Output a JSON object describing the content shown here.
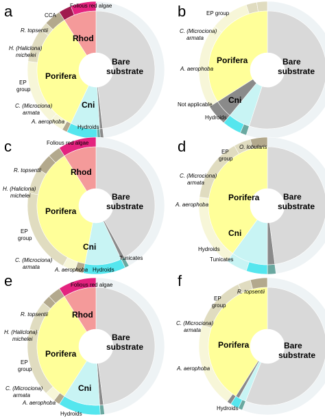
{
  "colors": {
    "bare_inner": "#d9d9d9",
    "bare_outer": "#eef3f5",
    "porifera_inner": "#ffff99",
    "porifera_outer": "#f7f6d8",
    "cni_inner": "#c8f4f4",
    "cni_outer": "#55e6ee",
    "rhod_inner": "#f49a9a",
    "rhod_outer": "#e4237f",
    "rhod_outer_dark": "#a01a4e",
    "na_inner": "#8a8a8a",
    "taxa_brown": "#b3a98d",
    "taxa_pale": "#e0dcc0",
    "teal": "#6aa8a0",
    "center": "#ffffff",
    "leader": "#444444"
  },
  "chart_data": [
    {
      "panel": "a",
      "type": "sunburst",
      "inner": [
        {
          "label": "Bare substrate",
          "value": 48.2,
          "color": "bare_inner"
        },
        {
          "label": "",
          "value": 0.8,
          "color": "na_inner"
        },
        {
          "label": "Cni",
          "value": 8.0,
          "color": "cni_inner"
        },
        {
          "label": "Porifera",
          "value": 34.0,
          "color": "porifera_inner"
        },
        {
          "label": "Rhod",
          "value": 9.0,
          "color": "rhod_inner"
        }
      ],
      "outer": [
        {
          "value": 48.2,
          "color": "bare_outer",
          "label": ""
        },
        {
          "value": 0.8,
          "color": "na_inner",
          "label": ""
        },
        {
          "value": 0.7,
          "color": "teal",
          "label": ""
        },
        {
          "value": 7.3,
          "color": "cni_outer",
          "label": "Hydroids"
        },
        {
          "value": 1.2,
          "color": "taxa_brown",
          "label": "A. aerophoba"
        },
        {
          "value": 3.5,
          "color": "porifera_outer",
          "label": "C. (Microciona) armata"
        },
        {
          "value": 15.3,
          "color": "porifera_outer",
          "label": "EP group"
        },
        {
          "value": 8.0,
          "color": "taxa_pale",
          "label": "H. (Haliclona) michelei"
        },
        {
          "value": 2.0,
          "color": "taxa_pale",
          "label": "R. topsentii"
        },
        {
          "value": 4.0,
          "color": "taxa_brown",
          "label": ""
        },
        {
          "value": 3.0,
          "color": "rhod_outer_dark",
          "label": "CCA"
        },
        {
          "value": 6.0,
          "color": "rhod_outer",
          "label": "Folious red algae"
        }
      ]
    },
    {
      "panel": "b",
      "type": "sunburst",
      "inner": [
        {
          "label": "Bare substrate",
          "value": 55.0,
          "color": "bare_inner"
        },
        {
          "label": "",
          "value": 6.0,
          "color": "cni_inner"
        },
        {
          "label": "",
          "value": 5.0,
          "color": "na_inner"
        },
        {
          "label": "Porifera",
          "value": 34.0,
          "color": "porifera_inner"
        }
      ],
      "outer": [
        {
          "value": 55.0,
          "color": "bare_outer",
          "label": ""
        },
        {
          "value": 1.5,
          "color": "teal",
          "label": "Hydroids"
        },
        {
          "value": 4.5,
          "color": "cni_outer",
          "label": ""
        },
        {
          "value": 5.0,
          "color": "na_inner",
          "label": "Not applicable"
        },
        {
          "value": 20.0,
          "color": "porifera_outer",
          "label": "A. aerophoba"
        },
        {
          "value": 9.0,
          "color": "porifera_outer",
          "label": "C. (Microciona) armata"
        },
        {
          "value": 2.5,
          "color": "taxa_pale",
          "label": "EP group"
        },
        {
          "value": 2.5,
          "color": "taxa_pale",
          "label": ""
        }
      ]
    },
    {
      "panel": "c",
      "type": "sunburst",
      "inner": [
        {
          "label": "Bare substrate",
          "value": 42.0,
          "color": "bare_inner"
        },
        {
          "label": "",
          "value": 1.0,
          "color": "na_inner"
        },
        {
          "label": "Cni",
          "value": 10.0,
          "color": "cni_inner"
        },
        {
          "label": "Porifera",
          "value": 38.0,
          "color": "porifera_inner"
        },
        {
          "label": "Rhod",
          "value": 9.0,
          "color": "rhod_inner"
        }
      ],
      "outer": [
        {
          "value": 42.0,
          "color": "bare_outer",
          "label": ""
        },
        {
          "value": 1.0,
          "color": "teal",
          "label": "Tunicates"
        },
        {
          "value": 10.0,
          "color": "cni_outer",
          "label": "Hydroids"
        },
        {
          "value": 2.0,
          "color": "taxa_brown",
          "label": "A. aerophoba"
        },
        {
          "value": 3.0,
          "color": "porifera_outer",
          "label": "C. (Microciona) armata"
        },
        {
          "value": 20.0,
          "color": "taxa_pale",
          "label": "EP group"
        },
        {
          "value": 6.0,
          "color": "taxa_pale",
          "label": "H. (Haliclona) michelei"
        },
        {
          "value": 4.0,
          "color": "taxa_brown",
          "label": "R. topsentii"
        },
        {
          "value": 3.0,
          "color": "taxa_brown",
          "label": ""
        },
        {
          "value": 9.0,
          "color": "rhod_outer",
          "label": "Folious red algae"
        }
      ]
    },
    {
      "panel": "d",
      "type": "sunburst",
      "inner": [
        {
          "label": "Bare substrate",
          "value": 48.0,
          "color": "bare_inner"
        },
        {
          "label": "",
          "value": 2.0,
          "color": "na_inner"
        },
        {
          "label": "Cni",
          "value": 10.0,
          "color": "cni_inner"
        },
        {
          "label": "Porifera",
          "value": 40.0,
          "color": "porifera_inner"
        }
      ],
      "outer": [
        {
          "value": 48.0,
          "color": "bare_outer",
          "label": ""
        },
        {
          "value": 2.0,
          "color": "teal",
          "label": "Tunicates"
        },
        {
          "value": 5.0,
          "color": "cni_outer",
          "label": "Hydroids"
        },
        {
          "value": 5.0,
          "color": "cni_inner",
          "label": ""
        },
        {
          "value": 17.0,
          "color": "porifera_outer",
          "label": "A. aerophoba"
        },
        {
          "value": 15.0,
          "color": "taxa_pale",
          "label": "C. (Microciona) armata"
        },
        {
          "value": 4.0,
          "color": "taxa_pale",
          "label": "EP group"
        },
        {
          "value": 4.0,
          "color": "taxa_brown",
          "label": "O. lobularis"
        }
      ]
    },
    {
      "panel": "e",
      "type": "sunburst",
      "inner": [
        {
          "label": "Bare substrate",
          "value": 48.0,
          "color": "bare_inner"
        },
        {
          "label": "",
          "value": 1.0,
          "color": "na_inner"
        },
        {
          "label": "Cni",
          "value": 10.0,
          "color": "cni_inner"
        },
        {
          "label": "Porifera",
          "value": 32.0,
          "color": "porifera_inner"
        },
        {
          "label": "Rhod",
          "value": 9.0,
          "color": "rhod_inner"
        }
      ],
      "outer": [
        {
          "value": 48.0,
          "color": "bare_outer",
          "label": ""
        },
        {
          "value": 1.0,
          "color": "teal",
          "label": ""
        },
        {
          "value": 10.0,
          "color": "cni_outer",
          "label": "Hydroids"
        },
        {
          "value": 1.5,
          "color": "taxa_brown",
          "label": "A. aerophoba"
        },
        {
          "value": 2.5,
          "color": "porifera_outer",
          "label": "C. (Microciona) armata"
        },
        {
          "value": 16.0,
          "color": "taxa_pale",
          "label": "EP group"
        },
        {
          "value": 7.0,
          "color": "taxa_pale",
          "label": "H. (Haliclona) michelei"
        },
        {
          "value": 2.0,
          "color": "taxa_brown",
          "label": "R. topsentii"
        },
        {
          "value": 3.0,
          "color": "taxa_brown",
          "label": ""
        },
        {
          "value": 9.0,
          "color": "rhod_outer",
          "label": "Folious red algae"
        }
      ]
    },
    {
      "panel": "f",
      "type": "sunburst",
      "inner": [
        {
          "label": "Bare substrate",
          "value": 56.0,
          "color": "bare_inner"
        },
        {
          "label": "",
          "value": 2.0,
          "color": "cni_inner"
        },
        {
          "label": "",
          "value": 1.0,
          "color": "na_inner"
        },
        {
          "label": "Porifera",
          "value": 41.0,
          "color": "porifera_inner"
        }
      ],
      "outer": [
        {
          "value": 56.0,
          "color": "bare_outer",
          "label": ""
        },
        {
          "value": 1.0,
          "color": "teal",
          "label": "Hydroids"
        },
        {
          "value": 2.0,
          "color": "cni_outer",
          "label": ""
        },
        {
          "value": 1.0,
          "color": "na_inner",
          "label": ""
        },
        {
          "value": 20.0,
          "color": "porifera_outer",
          "label": "A. aerophoba"
        },
        {
          "value": 13.0,
          "color": "taxa_pale",
          "label": "C. (Microciona) armata"
        },
        {
          "value": 3.0,
          "color": "taxa_pale",
          "label": "EP group"
        },
        {
          "value": 4.0,
          "color": "taxa_brown",
          "label": "R. topsentii"
        }
      ]
    }
  ],
  "panel_titles": [
    "a",
    "b",
    "c",
    "d",
    "e",
    "f"
  ],
  "text": {
    "bare_l1": "Bare",
    "bare_l2": "substrate",
    "porifera": "Porifera",
    "cni": "Cni",
    "rhod": "Rhod",
    "folious": "Folious red algae",
    "cca": "CCA",
    "r_topsentii": "R. topsentii",
    "h_haliclona_l1": "H. (Haliclona)",
    "h_haliclona_l2": "michelei",
    "ep_l1": "EP",
    "ep_l2": "group",
    "ep_group": "EP group",
    "c_micro_l1": "C. (Microciona)",
    "c_micro_l2": "armata",
    "a_aerophoba": "A. aerophoba",
    "hydroids": "Hydroids",
    "not_applicable": "Not applicable",
    "tunicates": "Tunicates",
    "o_lobularis": "O. lobularis"
  }
}
